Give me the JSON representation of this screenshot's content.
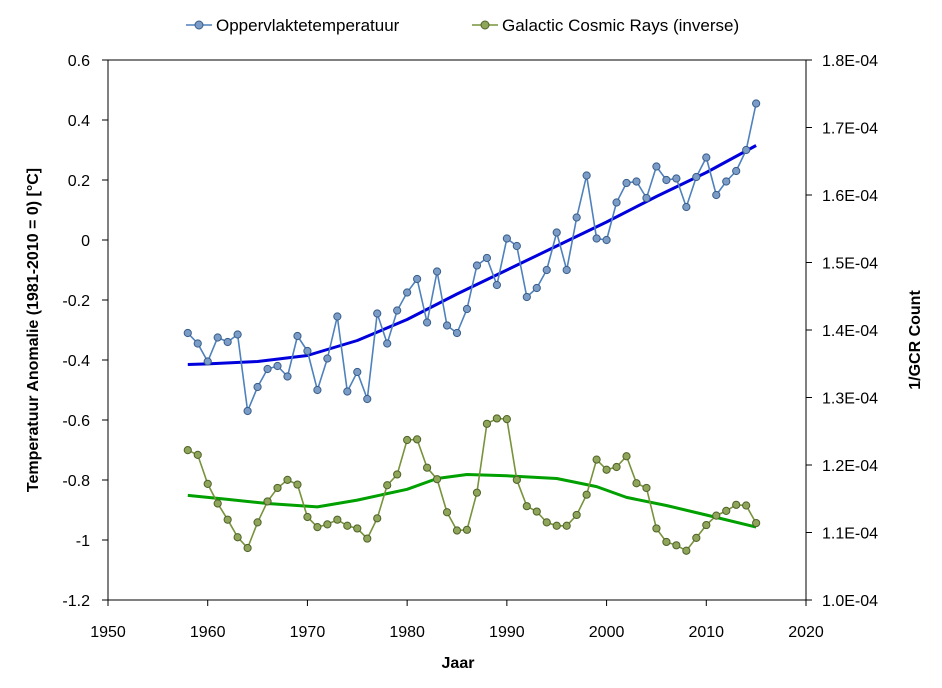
{
  "chart_data": {
    "type": "line",
    "xlabel": "Jaar",
    "ylabel_left": "Temperatuur  Anomalie (1981-2010 = 0) [°C]",
    "ylabel_right": "1/GCR Count",
    "xlim": [
      1950,
      2020
    ],
    "ylim_left": [
      -1.2,
      0.6
    ],
    "ylim_right": [
      0.0001,
      0.00018
    ],
    "x_ticks": [
      "1950",
      "1960",
      "1970",
      "1980",
      "1990",
      "2000",
      "2010",
      "2020"
    ],
    "y_left_ticks": [
      "0.6",
      "0.4",
      "0.2",
      "0",
      "-0.2",
      "-0.4",
      "-0.6",
      "-0.8",
      "-1",
      "-1.2"
    ],
    "y_right_ticks": [
      "1.8E-04",
      "1.7E-04",
      "1.6E-04",
      "1.5E-04",
      "1.4E-04",
      "1.3E-04",
      "1.2E-04",
      "1.1E-04",
      "1.0E-04"
    ],
    "legend": [
      "Oppervlaktetemperatuur",
      "Galactic Cosmic Rays (inverse)"
    ],
    "colors": {
      "temp_line": "#4f81bd",
      "temp_marker_fill": "#7a9cc6",
      "temp_marker_edge": "#385d8a",
      "temp_trend": "#0000dd",
      "gcr_line": "#77933c",
      "gcr_marker_fill": "#8ea55a",
      "gcr_marker_edge": "#4f6228",
      "gcr_trend": "#00a000"
    },
    "series": [
      {
        "name": "Oppervlaktetemperatuur",
        "axis": "left",
        "x": [
          1958,
          1959,
          1960,
          1961,
          1962,
          1963,
          1964,
          1965,
          1966,
          1967,
          1968,
          1969,
          1970,
          1971,
          1972,
          1973,
          1974,
          1975,
          1976,
          1977,
          1978,
          1979,
          1980,
          1981,
          1982,
          1983,
          1984,
          1985,
          1986,
          1987,
          1988,
          1989,
          1990,
          1991,
          1992,
          1993,
          1994,
          1995,
          1996,
          1997,
          1998,
          1999,
          2000,
          2001,
          2002,
          2003,
          2004,
          2005,
          2006,
          2007,
          2008,
          2009,
          2010,
          2011,
          2012,
          2013,
          2014,
          2015
        ],
        "values": [
          -0.31,
          -0.345,
          -0.405,
          -0.325,
          -0.34,
          -0.315,
          -0.57,
          -0.49,
          -0.43,
          -0.42,
          -0.455,
          -0.32,
          -0.37,
          -0.5,
          -0.395,
          -0.255,
          -0.505,
          -0.44,
          -0.53,
          -0.245,
          -0.345,
          -0.235,
          -0.175,
          -0.13,
          -0.275,
          -0.105,
          -0.285,
          -0.31,
          -0.23,
          -0.085,
          -0.06,
          -0.15,
          0.005,
          -0.02,
          -0.19,
          -0.16,
          -0.1,
          0.025,
          -0.1,
          0.075,
          0.215,
          0.005,
          0.0,
          0.125,
          0.19,
          0.195,
          0.14,
          0.245,
          0.2,
          0.205,
          0.11,
          0.21,
          0.275,
          0.15,
          0.195,
          0.23,
          0.3,
          0.455
        ]
      },
      {
        "name": "Temperature trend",
        "axis": "left",
        "x": [
          1958,
          1960,
          1965,
          1970,
          1975,
          1980,
          1985,
          1990,
          1995,
          2000,
          2005,
          2010,
          2015
        ],
        "values": [
          -0.415,
          -0.413,
          -0.405,
          -0.385,
          -0.335,
          -0.265,
          -0.18,
          -0.1,
          -0.02,
          0.06,
          0.145,
          0.225,
          0.315
        ]
      },
      {
        "name": "Galactic Cosmic Rays (inverse)",
        "axis": "right",
        "x": [
          1958,
          1959,
          1960,
          1961,
          1962,
          1963,
          1964,
          1965,
          1966,
          1967,
          1968,
          1969,
          1970,
          1971,
          1972,
          1973,
          1974,
          1975,
          1976,
          1977,
          1978,
          1979,
          1980,
          1981,
          1982,
          1983,
          1984,
          1985,
          1986,
          1987,
          1988,
          1989,
          1990,
          1991,
          1992,
          1993,
          1994,
          1995,
          1996,
          1997,
          1998,
          1999,
          2000,
          2001,
          2002,
          2003,
          2004,
          2005,
          2006,
          2007,
          2008,
          2009,
          2010,
          2011,
          2012,
          2013,
          2014,
          2015
        ],
        "values": [
          0.0001222,
          0.0001215,
          0.0001172,
          0.0001143,
          0.0001119,
          0.0001093,
          0.0001077,
          0.0001115,
          0.0001146,
          0.0001166,
          0.0001178,
          0.0001171,
          0.0001123,
          0.0001108,
          0.0001112,
          0.0001119,
          0.000111,
          0.0001106,
          0.0001091,
          0.0001121,
          0.000117,
          0.0001186,
          0.0001237,
          0.0001238,
          0.0001196,
          0.0001179,
          0.000113,
          0.0001103,
          0.0001104,
          0.0001159,
          0.0001261,
          0.0001269,
          0.0001268,
          0.0001178,
          0.0001139,
          0.0001131,
          0.0001115,
          0.000111,
          0.000111,
          0.0001126,
          0.0001156,
          0.0001208,
          0.0001193,
          0.0001197,
          0.0001213,
          0.0001173,
          0.0001166,
          0.0001106,
          0.0001086,
          0.0001081,
          0.0001073,
          0.0001092,
          0.0001111,
          0.0001125,
          0.0001132,
          0.0001141,
          0.000114,
          0.0001114
        ]
      },
      {
        "name": "GCR trend",
        "axis": "right",
        "x": [
          1958,
          1962,
          1966,
          1971,
          1975,
          1980,
          1983,
          1986,
          1990,
          1995,
          1999,
          2002,
          2006,
          2010,
          2015
        ],
        "values": [
          0.0001155,
          0.0001149,
          0.0001143,
          0.0001138,
          0.0001148,
          0.0001164,
          0.000118,
          0.0001186,
          0.0001184,
          0.000118,
          0.0001168,
          0.0001152,
          0.000114,
          0.0001126,
          0.0001108
        ]
      }
    ]
  }
}
